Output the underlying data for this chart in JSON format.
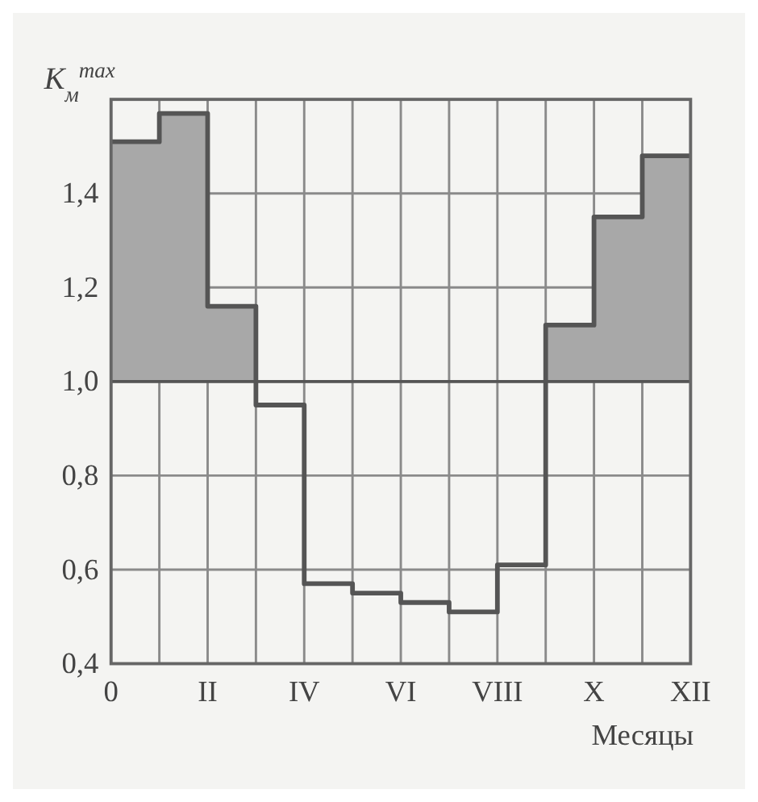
{
  "chart_data": {
    "type": "step",
    "ylabel": "K$_{м}$$^{max}$",
    "xlabel": "Месяцы",
    "categories": [
      "0",
      null,
      "II",
      null,
      "IV",
      null,
      "VI",
      null,
      "VIII",
      null,
      "X",
      null,
      "XII"
    ],
    "series": [
      {
        "color": "#555555",
        "values": [
          1.51,
          1.57,
          1.16,
          0.95,
          0.57,
          0.55,
          0.53,
          0.51,
          0.61,
          1.12,
          1.35,
          1.48,
          1.48
        ],
        "lower": [
          1,
          1,
          1,
          null,
          null,
          null,
          null,
          null,
          null,
          1,
          1,
          1,
          1
        ],
        "upper": [
          1.51,
          1.57,
          1.16,
          null,
          null,
          null,
          null,
          null,
          null,
          1.12,
          1.35,
          1.48,
          1.48
        ]
      }
    ],
    "ylim": [
      0.4,
      1.6
    ],
    "yticks": [
      {
        "value": 0.4,
        "label": "0,4"
      },
      {
        "value": 0.6,
        "label": "0,6"
      },
      {
        "value": 0.8,
        "label": "0,8"
      },
      {
        "value": 1,
        "label": "1,0"
      },
      {
        "value": 1.2,
        "label": "1,2"
      },
      {
        "value": 1.4,
        "label": "1,4"
      }
    ],
    "ref_lines": [
      {
        "axis": "y",
        "value": 1,
        "color": "#555555"
      }
    ],
    "grid": true
  }
}
